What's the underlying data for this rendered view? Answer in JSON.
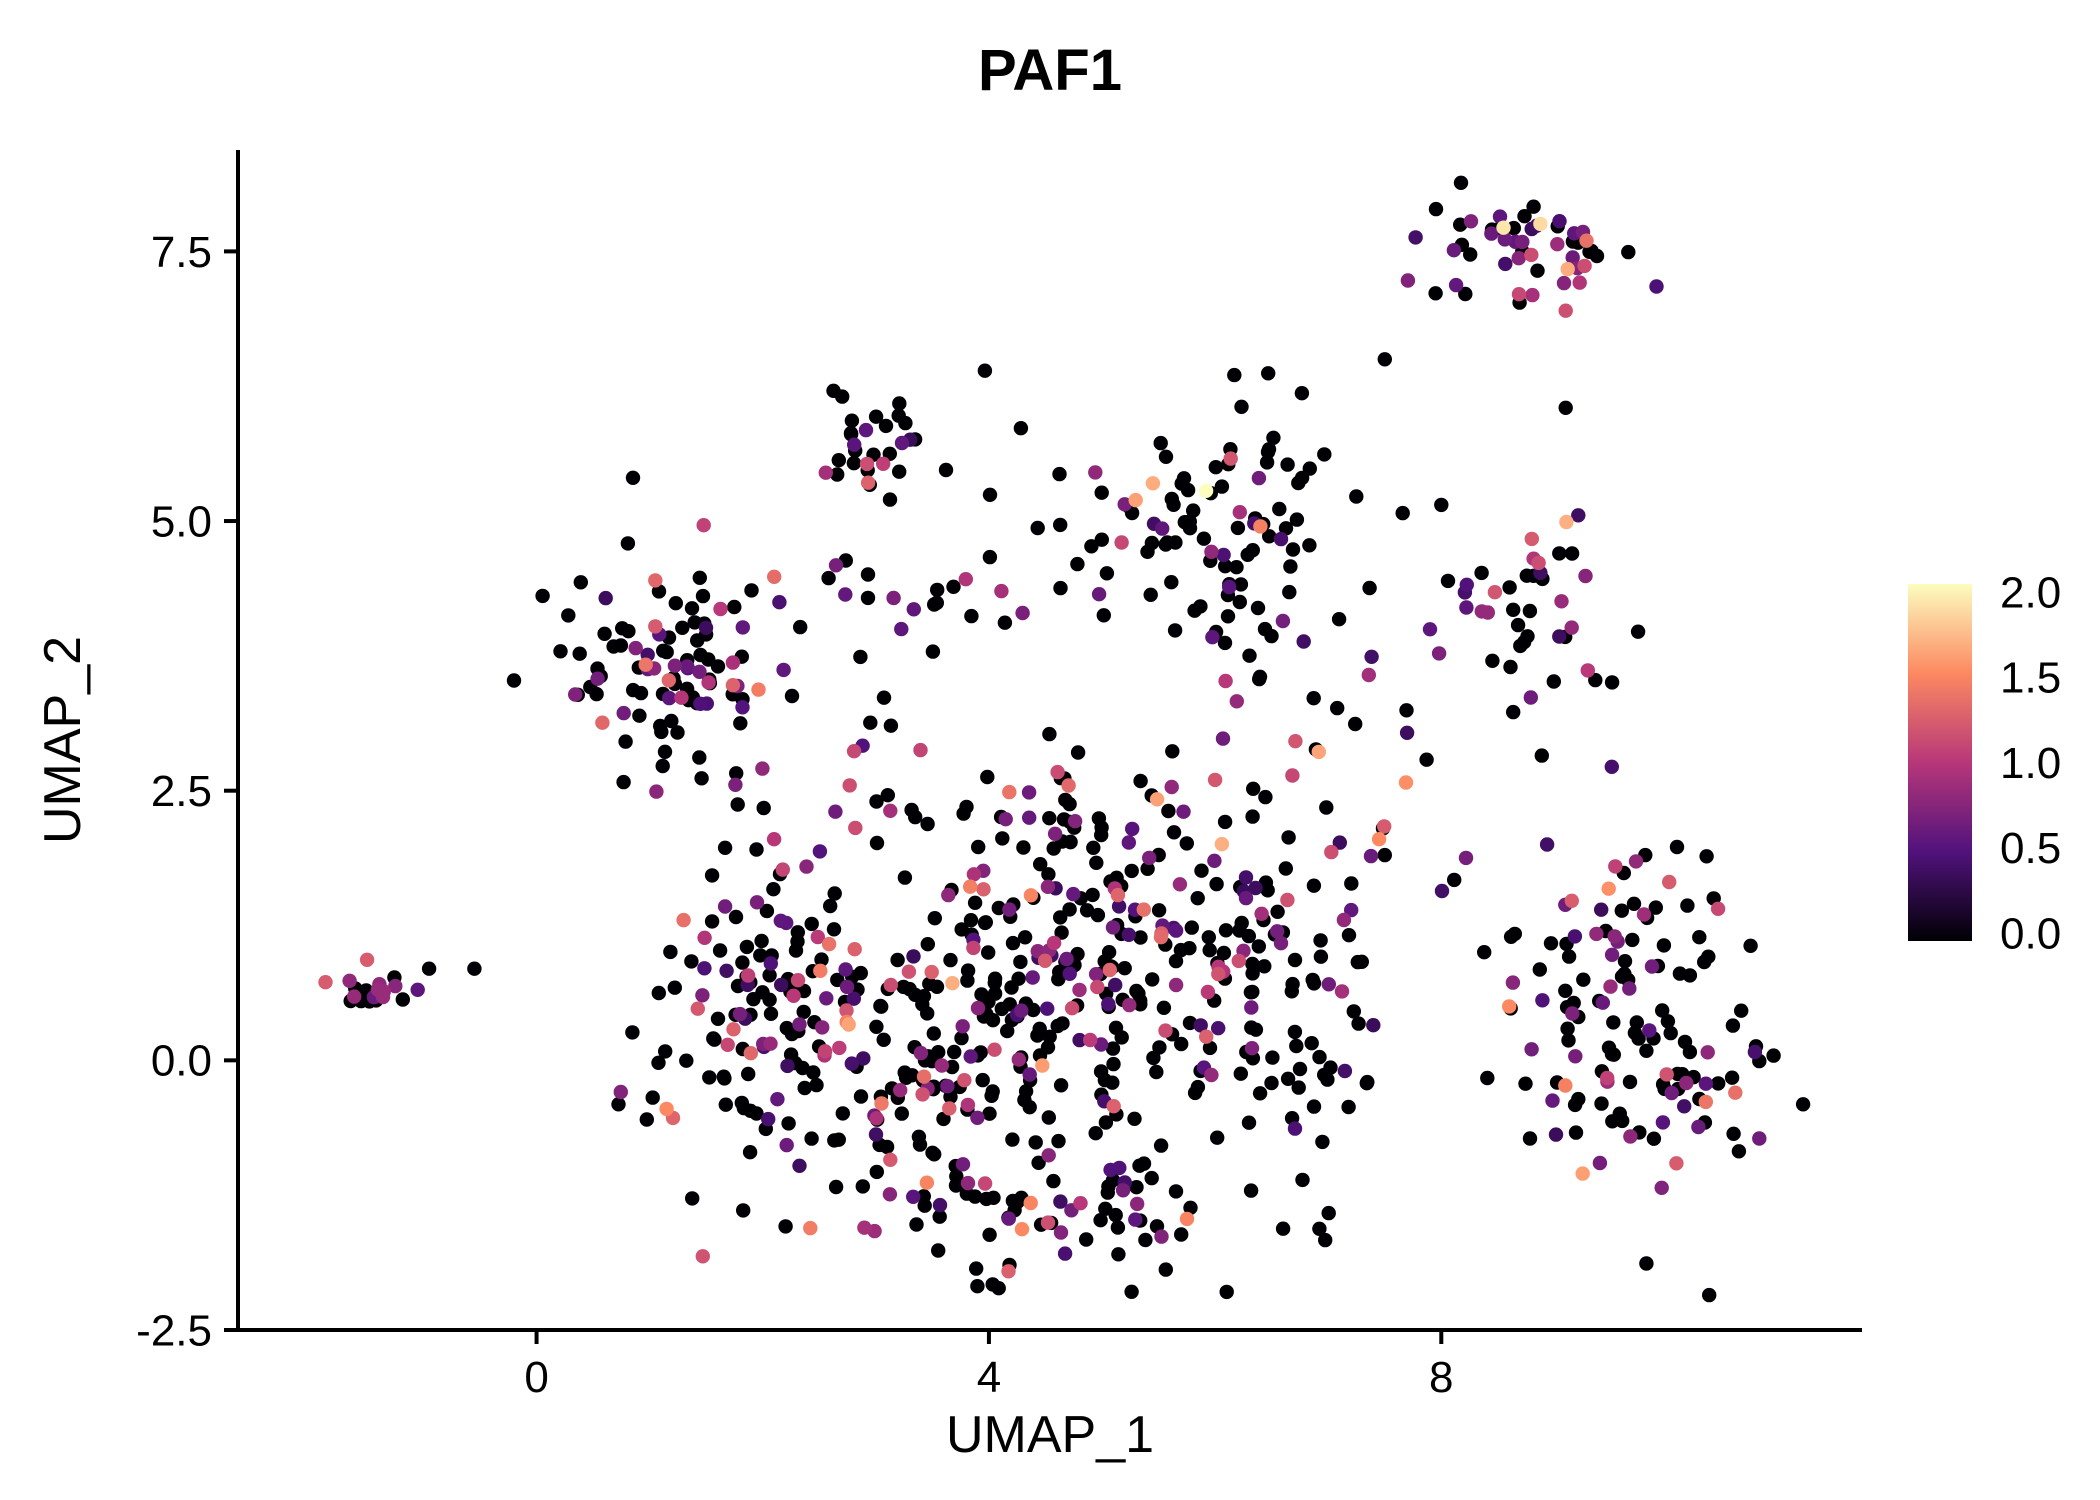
{
  "chart_data": {
    "type": "scatter",
    "title": "PAF1",
    "xlabel": "UMAP_1",
    "ylabel": "UMAP_2",
    "xlim": [
      -2.64,
      11.72
    ],
    "ylim": [
      -2.5,
      8.44
    ],
    "grid": false,
    "x_ticks": [
      {
        "value": 0,
        "label": "0"
      },
      {
        "value": 4,
        "label": "4"
      },
      {
        "value": 8,
        "label": "8"
      }
    ],
    "y_ticks": [
      {
        "value": -2.5,
        "label": "-2.5"
      },
      {
        "value": 0.0,
        "label": "0.0"
      },
      {
        "value": 2.5,
        "label": "2.5"
      },
      {
        "value": 5.0,
        "label": "5.0"
      },
      {
        "value": 7.5,
        "label": "7.5"
      }
    ],
    "colors": {
      "background": "#ffffff",
      "axis_color": "#000000",
      "text_color": "#000000"
    },
    "colorbar": {
      "position": "right",
      "limits": [
        0,
        2
      ],
      "ticks": [
        {
          "value": 2.0,
          "label": "2.0"
        },
        {
          "value": 1.5,
          "label": "1.5"
        },
        {
          "value": 1.0,
          "label": "1.0"
        },
        {
          "value": 0.5,
          "label": "0.5"
        },
        {
          "value": 0.0,
          "label": "0.0"
        }
      ],
      "colormap": "magma",
      "stops": [
        {
          "t": 0.0,
          "color": "#000004"
        },
        {
          "t": 0.25,
          "color": "#51127c"
        },
        {
          "t": 0.5,
          "color": "#b73779"
        },
        {
          "t": 0.75,
          "color": "#fc8961"
        },
        {
          "t": 1.0,
          "color": "#fcfdbf"
        }
      ]
    },
    "point_radius": 7.2,
    "seed": 7,
    "value_bins": [
      [
        0,
        0
      ],
      [
        0.35,
        0.85
      ],
      [
        0.85,
        1.3
      ],
      [
        1.3,
        1.7
      ],
      [
        1.7,
        2.0
      ]
    ],
    "clusters": [
      {
        "name": "far-left",
        "cx": -1.52,
        "cy": 0.66,
        "sx": 0.17,
        "sy": 0.09,
        "n": 20,
        "p": [
          0.5,
          0.3,
          0.2,
          0,
          0
        ]
      },
      {
        "name": "left",
        "cx": 1.25,
        "cy": 3.7,
        "sx": 0.46,
        "sy": 0.52,
        "n": 100,
        "p": [
          0.66,
          0.23,
          0.09,
          0.02,
          0
        ]
      },
      {
        "name": "top-mid",
        "cx": 2.95,
        "cy": 5.7,
        "sx": 0.26,
        "sy": 0.28,
        "n": 30,
        "p": [
          0.6,
          0.26,
          0.14,
          0,
          0
        ]
      },
      {
        "name": "upper-mid",
        "cx": 6.15,
        "cy": 4.95,
        "sx": 0.55,
        "sy": 0.58,
        "n": 90,
        "p": [
          0.76,
          0.15,
          0.06,
          0.03,
          0
        ]
      },
      {
        "name": "mid-band",
        "cx": 4.05,
        "cy": 4.3,
        "sx": 0.95,
        "sy": 0.2,
        "n": 20,
        "p": [
          0.55,
          0.25,
          0.2,
          0,
          0
        ]
      },
      {
        "name": "trail-left",
        "cx": 2.9,
        "cy": 3.55,
        "sx": 0.33,
        "sy": 0.5,
        "n": 12,
        "p": [
          0.6,
          0.25,
          0.15,
          0,
          0
        ]
      },
      {
        "name": "top-right",
        "cx": 8.65,
        "cy": 7.5,
        "sx": 0.42,
        "sy": 0.24,
        "n": 52,
        "p": [
          0.4,
          0.33,
          0.2,
          0.05,
          0.02
        ]
      },
      {
        "name": "right-mid",
        "cx": 8.85,
        "cy": 4.25,
        "sx": 0.4,
        "sy": 0.45,
        "n": 40,
        "p": [
          0.62,
          0.24,
          0.11,
          0.03,
          0
        ]
      },
      {
        "name": "right-bottom",
        "cx": 9.75,
        "cy": 0.45,
        "sx": 0.62,
        "sy": 0.8,
        "n": 135,
        "p": [
          0.62,
          0.24,
          0.1,
          0.04,
          0
        ]
      },
      {
        "name": "center-main",
        "cx": 4.6,
        "cy": 0.55,
        "sx": 1.05,
        "sy": 0.85,
        "n": 220,
        "p": [
          0.66,
          0.22,
          0.1,
          0.02,
          0
        ]
      },
      {
        "name": "center-left",
        "cx": 2.95,
        "cy": 0.0,
        "sx": 0.75,
        "sy": 0.7,
        "n": 120,
        "p": [
          0.7,
          0.2,
          0.08,
          0.02,
          0
        ]
      },
      {
        "name": "center-top",
        "cx": 5.7,
        "cy": 1.55,
        "sx": 0.85,
        "sy": 0.45,
        "n": 80,
        "p": [
          0.6,
          0.25,
          0.12,
          0.03,
          0
        ]
      },
      {
        "name": "center-bottom",
        "cx": 4.4,
        "cy": -1.35,
        "sx": 0.95,
        "sy": 0.33,
        "n": 70,
        "p": [
          0.66,
          0.22,
          0.09,
          0.03,
          0
        ]
      },
      {
        "name": "left-spur",
        "cx": 1.85,
        "cy": 0.9,
        "sx": 0.4,
        "sy": 0.78,
        "n": 70,
        "p": [
          0.66,
          0.22,
          0.1,
          0.02,
          0
        ]
      },
      {
        "name": "center-right",
        "cx": 6.6,
        "cy": 0.4,
        "sx": 0.52,
        "sy": 0.8,
        "n": 60,
        "p": [
          0.72,
          0.18,
          0.08,
          0.02,
          0
        ]
      },
      {
        "name": "sparse-mid",
        "cx": 4.3,
        "cy": 2.35,
        "sx": 1.5,
        "sy": 0.4,
        "n": 40,
        "p": [
          0.6,
          0.25,
          0.12,
          0.03,
          0
        ]
      },
      {
        "name": "between-right",
        "cx": 7.35,
        "cy": 3.3,
        "sx": 0.75,
        "sy": 0.85,
        "n": 22,
        "p": [
          0.7,
          0.2,
          0.1,
          0,
          0
        ]
      },
      {
        "name": "sparse-top",
        "cx": 4.3,
        "cy": 5.35,
        "sx": 0.65,
        "sy": 0.4,
        "n": 8,
        "p": [
          0.75,
          0.25,
          0,
          0,
          0
        ]
      }
    ],
    "highlight_points": [
      {
        "x": 5.45,
        "y": 5.35,
        "v": 1.65
      },
      {
        "x": 5.92,
        "y": 5.28,
        "v": 2.0
      },
      {
        "x": 8.55,
        "y": 7.72,
        "v": 1.9
      },
      {
        "x": 6.4,
        "y": 4.95,
        "v": 1.45
      },
      {
        "x": -0.95,
        "y": 0.85,
        "v": 0
      },
      {
        "x": -0.55,
        "y": 0.85,
        "v": 0
      },
      {
        "x": 7.45,
        "y": 2.05,
        "v": 1.5
      },
      {
        "x": 9.25,
        "y": -1.05,
        "v": 1.6
      },
      {
        "x": 8.6,
        "y": 0.5,
        "v": 1.5
      },
      {
        "x": 3.05,
        "y": -0.4,
        "v": 1.4
      },
      {
        "x": 9.1,
        "y": 6.95,
        "v": 1.15
      },
      {
        "x": 1.05,
        "y": 4.45,
        "v": 1.3
      },
      {
        "x": 10.6,
        "y": -0.3,
        "v": 1.35
      },
      {
        "x": 7.5,
        "y": 6.5,
        "v": 0
      },
      {
        "x": 9.1,
        "y": 6.05,
        "v": 0
      },
      {
        "x": 8.0,
        "y": 5.15,
        "v": 0
      },
      {
        "x": 2.1,
        "y": 2.05,
        "v": 1.0
      },
      {
        "x": 6.0,
        "y": 2.6,
        "v": 1.2
      },
      {
        "x": 1.3,
        "y": 1.3,
        "v": 1.35
      },
      {
        "x": 1.15,
        "y": -0.45,
        "v": 1.5
      }
    ]
  }
}
